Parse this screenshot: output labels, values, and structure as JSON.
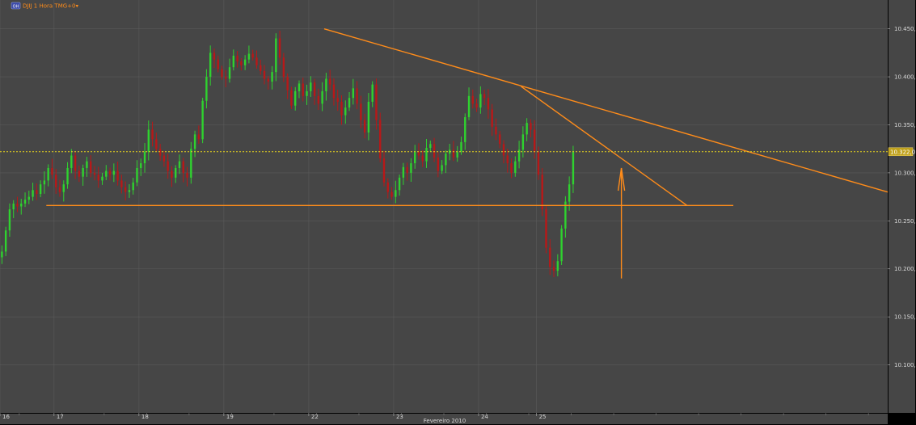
{
  "header": {
    "badge_text": "OH",
    "instrument_label": "DJIJ 1 Hora TMG+0▾"
  },
  "colors": {
    "background": "#464646",
    "frame": "#000000",
    "grid": "#5a5a5a",
    "up_candle": "#2fd22f",
    "down_candle": "#b81818",
    "trendline": "#ff8c1a",
    "price_line": "#e6d21e",
    "price_tag_bg": "#c0a11c"
  },
  "chart_data": {
    "type": "candlestick",
    "title": "",
    "xlabel": "Fevereiro 2010",
    "ylabel": "",
    "ylim": [
      10050,
      10480
    ],
    "yticks": [
      10100,
      10150,
      10200,
      10250,
      10300,
      10350,
      10400,
      10450
    ],
    "ytick_labels": [
      "10.100,0",
      "10.150,0",
      "10.200,0",
      "10.250,0",
      "10.300,0",
      "10.350,0",
      "10.400,0",
      "10.450,0"
    ],
    "x_categories": [
      "16",
      "17",
      "18",
      "19",
      "22",
      "23",
      "24",
      "25"
    ],
    "x_category_hours": [
      0,
      14,
      36,
      58,
      80,
      102,
      124,
      139
    ],
    "x_total_hours": 230,
    "current_price": 10322,
    "current_price_label": "10.322,0",
    "close_series_hourly": [
      10218,
      10240,
      10262,
      10268,
      10265,
      10268,
      10272,
      10275,
      10282,
      10278,
      10288,
      10292,
      10305,
      10298,
      10285,
      10280,
      10288,
      10305,
      10318,
      10302,
      10296,
      10305,
      10312,
      10300,
      10298,
      10292,
      10296,
      10302,
      10298,
      10302,
      10292,
      10285,
      10280,
      10282,
      10290,
      10305,
      10310,
      10322,
      10345,
      10335,
      10325,
      10318,
      10312,
      10302,
      10295,
      10305,
      10312,
      10300,
      10295,
      10325,
      10340,
      10335,
      10375,
      10400,
      10425,
      10418,
      10408,
      10400,
      10398,
      10410,
      10422,
      10416,
      10412,
      10418,
      10424,
      10420,
      10412,
      10406,
      10398,
      10395,
      10405,
      10440,
      10420,
      10400,
      10386,
      10370,
      10385,
      10393,
      10380,
      10385,
      10394,
      10380,
      10372,
      10385,
      10398,
      10392,
      10378,
      10374,
      10360,
      10368,
      10378,
      10388,
      10372,
      10355,
      10342,
      10374,
      10392,
      10355,
      10315,
      10290,
      10280,
      10275,
      10282,
      10295,
      10306,
      10300,
      10310,
      10322,
      10318,
      10312,
      10326,
      10330,
      10316,
      10302,
      10308,
      10320,
      10324,
      10316,
      10322,
      10332,
      10358,
      10380,
      10372,
      10368,
      10382,
      10378,
      10366,
      10348,
      10340,
      10330,
      10318,
      10310,
      10300,
      10312,
      10324,
      10340,
      10352,
      10345,
      10322,
      10298,
      10262,
      10222,
      10202,
      10198,
      10208,
      10242,
      10270,
      10288,
      10322
    ],
    "trendlines": [
      {
        "from": {
          "hour": 84,
          "price": 10450
        },
        "to": {
          "hour": 230,
          "price": 10280
        }
      },
      {
        "from": {
          "hour": 135,
          "price": 10390
        },
        "to": {
          "hour": 178,
          "price": 10266
        }
      },
      {
        "from": {
          "hour": 12,
          "price": 10266
        },
        "to": {
          "hour": 190,
          "price": 10266
        }
      }
    ],
    "arrow": {
      "hour": 161,
      "from_price": 10190,
      "to_price": 10305
    }
  }
}
